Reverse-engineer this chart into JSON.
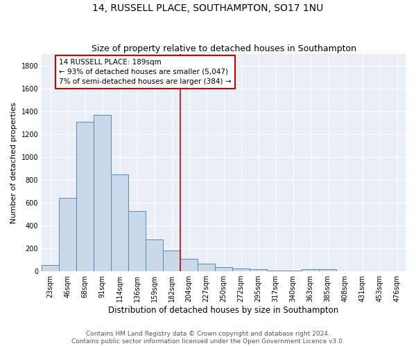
{
  "title": "14, RUSSELL PLACE, SOUTHAMPTON, SO17 1NU",
  "subtitle": "Size of property relative to detached houses in Southampton",
  "xlabel": "Distribution of detached houses by size in Southampton",
  "ylabel": "Number of detached properties",
  "categories": [
    "23sqm",
    "46sqm",
    "68sqm",
    "91sqm",
    "114sqm",
    "136sqm",
    "159sqm",
    "182sqm",
    "204sqm",
    "227sqm",
    "250sqm",
    "272sqm",
    "295sqm",
    "317sqm",
    "340sqm",
    "363sqm",
    "385sqm",
    "408sqm",
    "431sqm",
    "453sqm",
    "476sqm"
  ],
  "values": [
    55,
    645,
    1305,
    1370,
    845,
    530,
    280,
    185,
    110,
    65,
    35,
    25,
    18,
    8,
    5,
    20,
    18,
    0,
    0,
    0,
    0
  ],
  "bar_color": "#c9d9ea",
  "bar_edge_color": "#5a8ab5",
  "background_color": "#eaeff7",
  "vline_x_index": 7.5,
  "vline_color": "#cc0000",
  "annotation_text_line1": "14 RUSSELL PLACE: 189sqm",
  "annotation_text_line2": "← 93% of detached houses are smaller (5,047)",
  "annotation_text_line3": "7% of semi-detached houses are larger (384) →",
  "footnote1": "Contains HM Land Registry data © Crown copyright and database right 2024.",
  "footnote2": "Contains public sector information licensed under the Open Government Licence v3.0.",
  "ylim": [
    0,
    1900
  ],
  "yticks": [
    0,
    200,
    400,
    600,
    800,
    1000,
    1200,
    1400,
    1600,
    1800
  ],
  "title_fontsize": 10,
  "subtitle_fontsize": 9,
  "xlabel_fontsize": 8.5,
  "ylabel_fontsize": 8,
  "tick_fontsize": 7,
  "annotation_fontsize": 7.5,
  "footnote_fontsize": 6.5
}
